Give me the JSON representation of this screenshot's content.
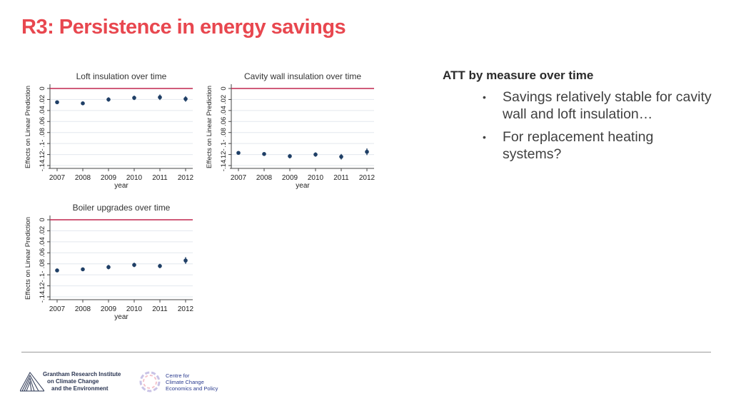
{
  "slide": {
    "title": "R3: Persistence in energy savings"
  },
  "side_panel": {
    "heading": "ATT by measure over time",
    "bullets": [
      "Savings relatively stable for cavity wall and loft insulation…",
      "For replacement heating systems?"
    ]
  },
  "footer": {
    "logos": [
      {
        "name": "Grantham Research Institute",
        "lines": [
          "Grantham Research Institute",
          "on Climate Change",
          "and the Environment"
        ]
      },
      {
        "name": "Centre for Climate Change Economics and Policy",
        "lines": [
          "Centre for",
          "Climate Change",
          "Economics and Policy"
        ]
      }
    ]
  },
  "colors": {
    "title": "#e8474f",
    "reference_line": "#c0264e",
    "marker": "#1f3f66",
    "gridline": "#e3e8ee"
  },
  "chart_data": [
    {
      "type": "scatter",
      "title": "Loft insulation over time",
      "xlabel": "year",
      "ylabel": "Effects on Linear Prediction",
      "x": [
        "2007",
        "2008",
        "2009",
        "2010",
        "2011",
        "2012"
      ],
      "yticks": [
        "-.14",
        ".12-",
        ".1-",
        ".08",
        ".06",
        ".04",
        ".02",
        "0"
      ],
      "ylim": [
        -0.14,
        0.0
      ],
      "reference_line": 0.0,
      "values": [
        -0.025,
        -0.027,
        -0.02,
        -0.017,
        -0.016,
        -0.019
      ],
      "ci_halfwidth": [
        0.003,
        0.003,
        0.004,
        0.004,
        0.005,
        0.005
      ]
    },
    {
      "type": "scatter",
      "title": "Cavity wall insulation over time",
      "xlabel": "year",
      "ylabel": "Effects on Linear Prediction",
      "x": [
        "2007",
        "2008",
        "2009",
        "2010",
        "2011",
        "2012"
      ],
      "yticks": [
        "-.14",
        ".12-",
        ".1-",
        ".08",
        ".06",
        ".04",
        ".02",
        "0"
      ],
      "ylim": [
        -0.14,
        0.0
      ],
      "reference_line": 0.0,
      "values": [
        -0.117,
        -0.119,
        -0.123,
        -0.12,
        -0.124,
        -0.115
      ],
      "ci_halfwidth": [
        0.003,
        0.003,
        0.004,
        0.004,
        0.005,
        0.006
      ]
    },
    {
      "type": "scatter",
      "title": "Boiler upgrades over time",
      "xlabel": "year",
      "ylabel": "Effects on Linear Prediction",
      "x": [
        "2007",
        "2008",
        "2009",
        "2010",
        "2011",
        "2012"
      ],
      "yticks": [
        "-.14",
        ".12-",
        ".1-",
        ".08",
        ".06",
        ".04",
        ".02",
        "0"
      ],
      "ylim": [
        -0.14,
        0.0
      ],
      "reference_line": 0.0,
      "values": [
        -0.092,
        -0.09,
        -0.086,
        -0.082,
        -0.084,
        -0.074
      ],
      "ci_halfwidth": [
        0.003,
        0.003,
        0.004,
        0.004,
        0.004,
        0.006
      ]
    }
  ]
}
